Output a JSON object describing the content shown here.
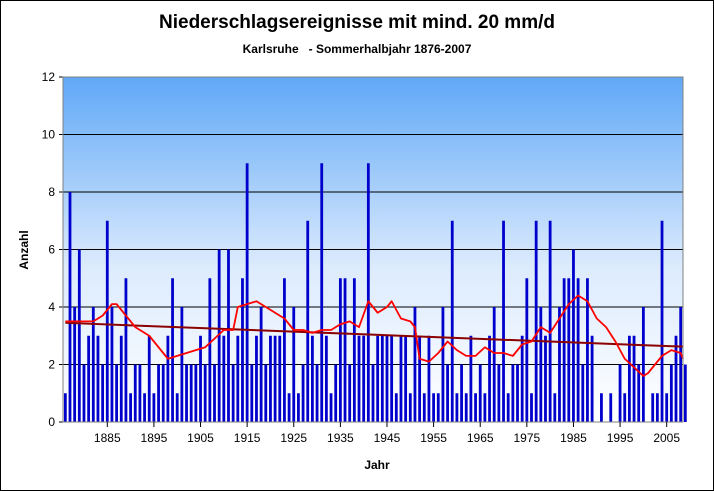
{
  "chart_data": {
    "type": "bar",
    "title": "Niederschlagsereignisse mit mind. 20 mm/d",
    "subtitle": "Karlsruhe   - Sommerhalbjahr 1876-2007",
    "xlabel": "Jahr",
    "ylabel": "Anzahl",
    "ylim": [
      0,
      12
    ],
    "yticks": [
      0,
      2,
      4,
      6,
      8,
      10,
      12
    ],
    "xticks": [
      1885,
      1895,
      1905,
      1915,
      1925,
      1935,
      1945,
      1955,
      1965,
      1975,
      1985,
      1995,
      2005
    ],
    "grid": true,
    "x_start": 1876,
    "x_end": 2007,
    "values": [
      1,
      8,
      4,
      6,
      2,
      3,
      4,
      3,
      2,
      7,
      4,
      2,
      3,
      5,
      1,
      2,
      2,
      1,
      3,
      1,
      2,
      2,
      3,
      5,
      1,
      4,
      2,
      2,
      2,
      3,
      2,
      5,
      2,
      6,
      3,
      6,
      2,
      3,
      5,
      9,
      2,
      3,
      4,
      2,
      3,
      3,
      3,
      5,
      1,
      4,
      1,
      2,
      7,
      3,
      2,
      9,
      3,
      1,
      2,
      5,
      5,
      2,
      5,
      3,
      3,
      9,
      2,
      3,
      3,
      3,
      3,
      1,
      3,
      3,
      1,
      4,
      3,
      1,
      3,
      1,
      1,
      4,
      2,
      7,
      1,
      2,
      1,
      3,
      1,
      2,
      1,
      3,
      4,
      2,
      7,
      1,
      2,
      2,
      3,
      5,
      1,
      7,
      4,
      3,
      7,
      1,
      4,
      5,
      5,
      6,
      5,
      2,
      5,
      3,
      0,
      1,
      0,
      1,
      0,
      2,
      1,
      3,
      3,
      2,
      4,
      0,
      1,
      1,
      7,
      1,
      2,
      3,
      4,
      2
    ],
    "smoothed": [
      [
        1876,
        3.5
      ],
      [
        1882,
        3.5
      ],
      [
        1884,
        3.7
      ],
      [
        1886,
        4.1
      ],
      [
        1887,
        4.1
      ],
      [
        1889,
        3.7
      ],
      [
        1891,
        3.3
      ],
      [
        1894,
        3.0
      ],
      [
        1896,
        2.6
      ],
      [
        1898,
        2.2
      ],
      [
        1900,
        2.3
      ],
      [
        1902,
        2.4
      ],
      [
        1904,
        2.5
      ],
      [
        1906,
        2.6
      ],
      [
        1908,
        2.9
      ],
      [
        1910,
        3.2
      ],
      [
        1912,
        3.2
      ],
      [
        1913,
        4.0
      ],
      [
        1915,
        4.1
      ],
      [
        1917,
        4.2
      ],
      [
        1919,
        4.0
      ],
      [
        1921,
        3.8
      ],
      [
        1923,
        3.6
      ],
      [
        1925,
        3.2
      ],
      [
        1927,
        3.2
      ],
      [
        1929,
        3.1
      ],
      [
        1931,
        3.2
      ],
      [
        1933,
        3.2
      ],
      [
        1935,
        3.4
      ],
      [
        1937,
        3.5
      ],
      [
        1939,
        3.3
      ],
      [
        1941,
        4.2
      ],
      [
        1943,
        3.8
      ],
      [
        1945,
        4.0
      ],
      [
        1946,
        4.2
      ],
      [
        1948,
        3.6
      ],
      [
        1950,
        3.5
      ],
      [
        1951,
        3.3
      ],
      [
        1952,
        2.2
      ],
      [
        1954,
        2.1
      ],
      [
        1956,
        2.4
      ],
      [
        1958,
        2.8
      ],
      [
        1960,
        2.5
      ],
      [
        1962,
        2.3
      ],
      [
        1964,
        2.3
      ],
      [
        1966,
        2.6
      ],
      [
        1968,
        2.4
      ],
      [
        1970,
        2.4
      ],
      [
        1972,
        2.3
      ],
      [
        1974,
        2.7
      ],
      [
        1976,
        2.8
      ],
      [
        1978,
        3.3
      ],
      [
        1980,
        3.1
      ],
      [
        1982,
        3.6
      ],
      [
        1984,
        4.1
      ],
      [
        1986,
        4.4
      ],
      [
        1988,
        4.2
      ],
      [
        1990,
        3.6
      ],
      [
        1992,
        3.3
      ],
      [
        1994,
        2.8
      ],
      [
        1996,
        2.2
      ],
      [
        1998,
        1.9
      ],
      [
        2000,
        1.6
      ],
      [
        2001,
        1.7
      ],
      [
        2002,
        1.9
      ],
      [
        2003,
        2.1
      ],
      [
        2004,
        2.3
      ],
      [
        2006,
        2.5
      ],
      [
        2008,
        2.4
      ],
      [
        2009,
        2.2
      ]
    ],
    "trend": [
      [
        1876,
        3.45
      ],
      [
        2009,
        2.62
      ]
    ],
    "colors": {
      "bars": "#0000cc",
      "smoothed": "#ff0000",
      "trend": "#8b0000",
      "plot_bg_top": "#5fa8f7",
      "plot_bg_bottom": "#ffffff",
      "grid": "#000000"
    }
  }
}
